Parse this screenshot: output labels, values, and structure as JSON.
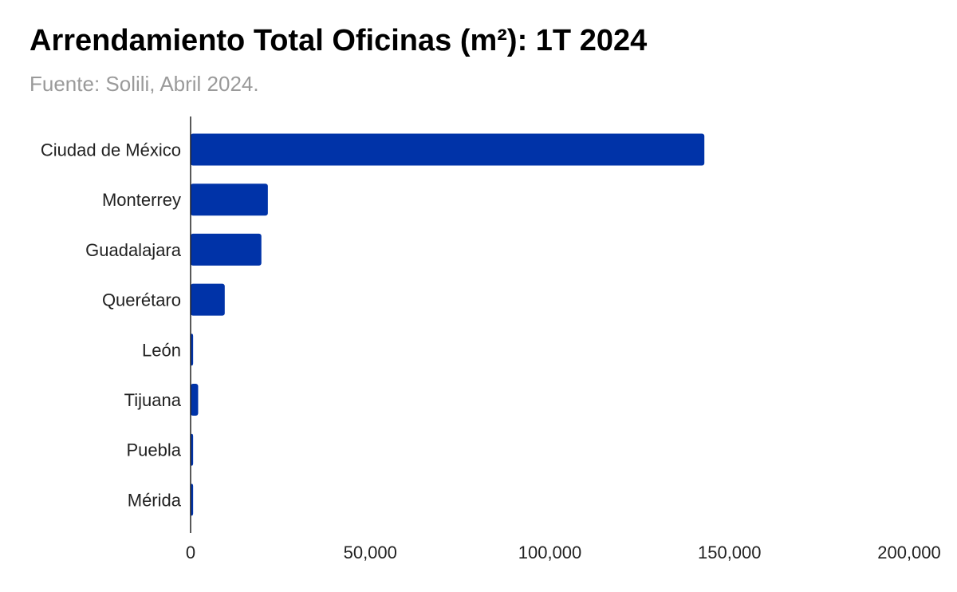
{
  "title": "Arrendamiento Total Oficinas (m²): 1T 2024",
  "subtitle": "Fuente: Solili, Abril 2024.",
  "chart_data": {
    "type": "bar",
    "orientation": "horizontal",
    "title": "Arrendamiento Total Oficinas (m²): 1T 2024",
    "subtitle": "Fuente: Solili, Abril 2024.",
    "categories": [
      "Ciudad de México",
      "Monterrey",
      "Guadalajara",
      "Querétaro",
      "León",
      "Tijuana",
      "Puebla",
      "Mérida"
    ],
    "values": [
      143000,
      21500,
      19700,
      9500,
      700,
      2100,
      700,
      700
    ],
    "xlim": [
      0,
      200000
    ],
    "xticks": [
      0,
      50000,
      100000,
      150000,
      200000
    ],
    "xtick_labels": [
      "0",
      "50,000",
      "100,000",
      "150,000",
      "200,000"
    ],
    "xlabel": "",
    "ylabel": "",
    "grid": false,
    "legend": "none",
    "bar_color": "#0033a8"
  }
}
